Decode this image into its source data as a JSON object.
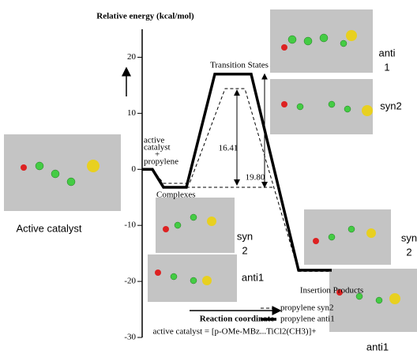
{
  "chart_data": {
    "type": "energy-profile",
    "title": "Relative energy (kcal/mol)",
    "x_label": "Reaction coordinate",
    "footnote": "active catalyst = [p-OMe-MBz...TiCl2(CH3)]+",
    "categories": [
      null,
      null,
      null,
      null
    ],
    "ylim": [
      -30,
      25
    ],
    "yticks": [
      -30,
      -20,
      -10,
      0,
      10,
      20
    ],
    "series": [
      {
        "name": "propylene syn2",
        "color": "#000000",
        "dash": true,
        "values": [
          0,
          -2.5,
          14.4,
          -18.2
        ]
      },
      {
        "name": "propylene anti1",
        "color": "#000000",
        "dash": false,
        "values": [
          0,
          -3.2,
          17,
          -18
        ]
      }
    ],
    "annotations": [
      {
        "text": [
          "active",
          "catalyst",
          "+",
          "propylene"
        ]
      },
      {
        "text": [
          "Complexes"
        ]
      },
      {
        "text": [
          "Transition States"
        ]
      },
      {
        "text": [
          "Insertion Products"
        ]
      },
      {
        "text": [
          "16.41"
        ]
      },
      {
        "text": [
          "19.80"
        ]
      }
    ],
    "molecule_labels": [
      [
        "anti",
        "1"
      ],
      [
        "syn2"
      ],
      [
        "Active catalyst"
      ],
      [
        "syn",
        "2"
      ],
      [
        "anti1"
      ],
      [
        "syn",
        "2"
      ],
      [
        "anti1"
      ]
    ]
  }
}
